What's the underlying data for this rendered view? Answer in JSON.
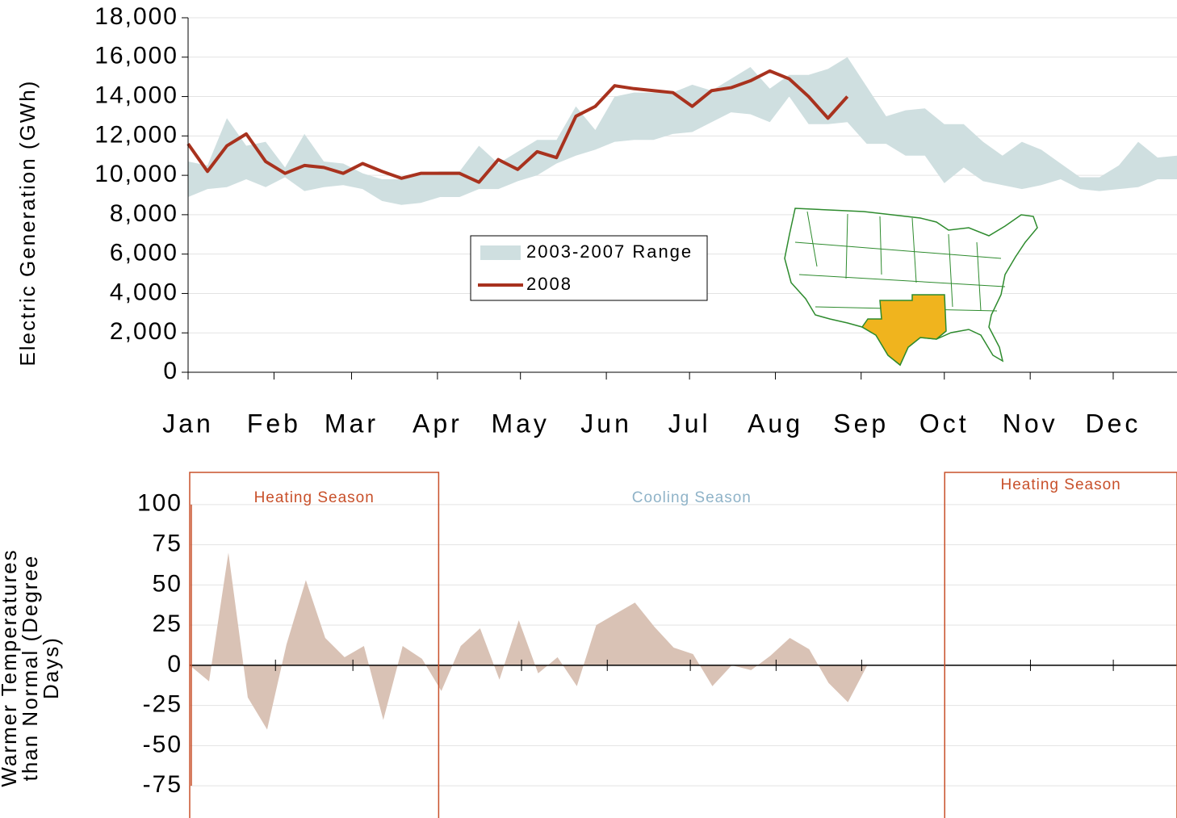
{
  "chart_data": [
    {
      "type": "line",
      "y_label": "Electric Generation (GWh)",
      "x": [
        0,
        1,
        2,
        3,
        4,
        5,
        6,
        7,
        8,
        9,
        10,
        11,
        12,
        13,
        14,
        15,
        16,
        17,
        18,
        19,
        20,
        21,
        22,
        23,
        24,
        25,
        26,
        27,
        28,
        29,
        30,
        31,
        32,
        33,
        34,
        35,
        36,
        37,
        38,
        39,
        40,
        41,
        42,
        43,
        44,
        45,
        46,
        47,
        48,
        49,
        50,
        51
      ],
      "xlim": [
        0,
        51
      ],
      "xticks": [
        {
          "value": 0,
          "label": "Jan"
        },
        {
          "value": 4.43,
          "label": "Feb"
        },
        {
          "value": 8.43,
          "label": "Mar"
        },
        {
          "value": 12.86,
          "label": "Apr"
        },
        {
          "value": 17.14,
          "label": "May"
        },
        {
          "value": 21.57,
          "label": "Jun"
        },
        {
          "value": 25.86,
          "label": "Jul"
        },
        {
          "value": 30.29,
          "label": "Aug"
        },
        {
          "value": 34.71,
          "label": "Sep"
        },
        {
          "value": 39,
          "label": "Oct"
        },
        {
          "value": 43.43,
          "label": "Nov"
        },
        {
          "value": 47.71,
          "label": "Dec"
        }
      ],
      "ylim": [
        0,
        18000
      ],
      "yticks": [
        0,
        {
          "value": 2000,
          "label": "2,000"
        },
        {
          "value": 4000,
          "label": "4,000"
        },
        {
          "value": 6000,
          "label": "6,000"
        },
        {
          "value": 8000,
          "label": "8,000"
        },
        {
          "value": 10000,
          "label": "10,000"
        },
        {
          "value": 12000,
          "label": "12,000"
        },
        {
          "value": 14000,
          "label": "14,000"
        },
        {
          "value": 16000,
          "label": "16,000"
        },
        {
          "value": 18000,
          "label": "18,000"
        }
      ],
      "grid": true,
      "legend": "center",
      "series": [
        {
          "name": "2003-2007 Range",
          "color": "#cfdfe0",
          "high": [
            10700,
            10500,
            12900,
            11500,
            11700,
            10400,
            12100,
            10700,
            10600,
            10100,
            9800,
            9800,
            10100,
            10200,
            10200,
            11500,
            10600,
            11200,
            11800,
            11800,
            13500,
            12300,
            14000,
            14200,
            14200,
            14200,
            14600,
            14300,
            14900,
            15500,
            14400,
            15100,
            15100,
            15400,
            16000,
            14500,
            13000,
            13300,
            13400,
            12600,
            12600,
            11700,
            11000,
            11700,
            11300,
            10600,
            9900,
            9900,
            10500,
            11700,
            10900,
            11000
          ],
          "low": [
            8900,
            9300,
            9400,
            9800,
            9400,
            9900,
            9200,
            9400,
            9500,
            9300,
            8700,
            8500,
            8600,
            8900,
            8900,
            9300,
            9300,
            9700,
            10000,
            10600,
            11000,
            11300,
            11700,
            11800,
            11800,
            12100,
            12200,
            12700,
            13200,
            13100,
            12700,
            14000,
            12600,
            12600,
            12700,
            11600,
            11600,
            11000,
            11000,
            9600,
            10400,
            9700,
            9500,
            9300,
            9500,
            9800,
            9300,
            9200,
            9300,
            9400,
            9800,
            9800
          ]
        },
        {
          "name": "2008",
          "color": "#a8321e",
          "values": [
            11600,
            10200,
            11500,
            12100,
            10700,
            10100,
            10500,
            10400,
            10100,
            10600,
            10200,
            9850,
            10100,
            10100,
            10100,
            9650,
            10800,
            10300,
            11200,
            10900,
            13000,
            13500,
            14550,
            14400,
            14300,
            14200,
            13500,
            14300,
            14450,
            14800,
            15300,
            14900,
            14000,
            12900,
            14000,
            null,
            null,
            null,
            null,
            null,
            null,
            null,
            null,
            null,
            null,
            null,
            null,
            null,
            null,
            null,
            null,
            null
          ]
        }
      ]
    },
    {
      "type": "area",
      "y_label": "Warmer Temperatures than Normal (Degree Days)",
      "color": "#d9c2b5",
      "values": [
        0,
        -10,
        70,
        -20,
        -40,
        13,
        53,
        17,
        5,
        12,
        -34,
        12,
        4,
        -16,
        12,
        23,
        -9,
        28,
        -5,
        5,
        -13,
        25,
        32,
        39,
        24,
        11,
        7,
        -13,
        0,
        -3,
        6,
        17,
        10,
        -11,
        -23,
        0,
        null,
        null,
        null,
        null,
        null,
        null,
        null,
        null,
        null,
        null,
        null,
        null,
        null,
        null,
        null,
        null
      ],
      "ylim": [
        -95,
        120
      ],
      "yticks": [
        -75,
        -50,
        -25,
        0,
        25,
        50,
        75,
        100
      ],
      "grid": true,
      "seasons": [
        {
          "label": "Heating Season",
          "color": "#c8502a",
          "start": 0,
          "end": 12.86,
          "box": true
        },
        {
          "label": "Cooling Season",
          "color": "#8fb3c8",
          "start": 12.86,
          "end": 39,
          "box": false
        },
        {
          "label": "Heating Season",
          "color": "#c8502a",
          "start": 39,
          "end": 51,
          "box": true
        }
      ]
    }
  ]
}
